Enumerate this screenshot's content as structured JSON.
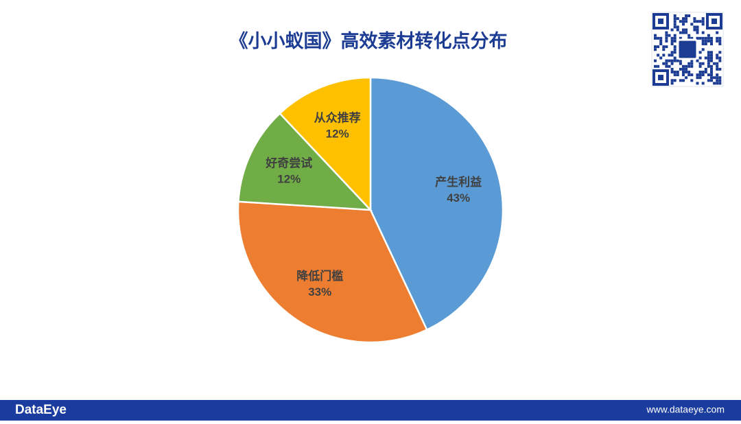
{
  "chart_data": {
    "type": "pie",
    "title": "《小小蚁国》高效素材转化点分布",
    "categories": [
      "产生利益",
      "降低门槛",
      "好奇尝试",
      "从众推荐"
    ],
    "values": [
      43,
      33,
      12,
      12
    ],
    "value_labels": [
      "43%",
      "33%",
      "12%",
      "12%"
    ],
    "colors": [
      "#5b9bd5",
      "#ed7d31",
      "#70ad47",
      "#ffc000"
    ]
  },
  "footer": {
    "brand": "DataEye",
    "url": "www.dataeye.com"
  }
}
